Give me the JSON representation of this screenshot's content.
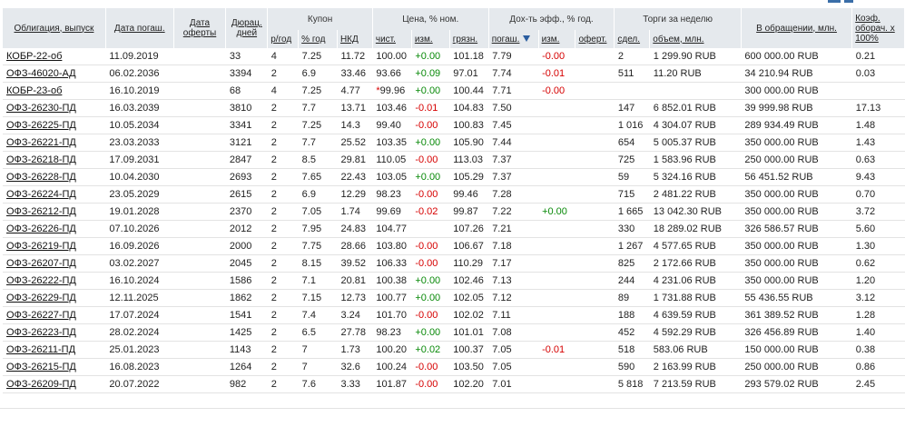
{
  "headers": {
    "bond": "Облигация, выпуск",
    "maturity": "Дата погаш.",
    "offer_date": "Дата оферты",
    "duration": "Дюрац. дней",
    "coupon": "Купон",
    "coupon_freq": "р/год",
    "coupon_rate": "% год",
    "nkd": "НКД",
    "price": "Цена, % ном.",
    "clean": "чист.",
    "change": "изм.",
    "dirty": "грязн.",
    "yield": "Дох-ть эфф., % год.",
    "to_maturity": "погаш.",
    "yield_change": "изм.",
    "to_offer": "оферт.",
    "trades": "Торги за неделю",
    "deals": "сдел.",
    "volume": "объем, млн.",
    "outstanding": "В обращении, млн.",
    "turnover": "Коэф. оборач. x 100%"
  },
  "rows": [
    {
      "name": "КОБР-22-об",
      "mat": "11.09.2019",
      "offer": "",
      "dur": "33",
      "freq": "4",
      "rate": "7.25",
      "nkd": "11.72",
      "star": "",
      "clean": "100.00",
      "chg": "+0.00",
      "dirty": "101.18",
      "ytm": "7.79",
      "ychg": "-0.00",
      "yoff": "",
      "deals": "2",
      "vol": "1 299.90 RUB",
      "out": "600 000.00 RUB",
      "coef": "0.21"
    },
    {
      "name": "ОФЗ-46020-АД",
      "mat": "06.02.2036",
      "offer": "",
      "dur": "3394",
      "freq": "2",
      "rate": "6.9",
      "nkd": "33.46",
      "star": "",
      "clean": "93.66",
      "chg": "+0.09",
      "dirty": "97.01",
      "ytm": "7.74",
      "ychg": "-0.01",
      "yoff": "",
      "deals": "511",
      "vol": "11.20 RUB",
      "out": "34 210.94 RUB",
      "coef": "0.03"
    },
    {
      "name": "КОБР-23-об",
      "mat": "16.10.2019",
      "offer": "",
      "dur": "68",
      "freq": "4",
      "rate": "7.25",
      "nkd": "4.77",
      "star": "*",
      "clean": "99.96",
      "chg": "+0.00",
      "dirty": "100.44",
      "ytm": "7.71",
      "ychg": "-0.00",
      "yoff": "",
      "deals": "",
      "vol": "",
      "out": "300 000.00 RUB",
      "coef": ""
    },
    {
      "name": "ОФЗ-26230-ПД",
      "mat": "16.03.2039",
      "offer": "",
      "dur": "3810",
      "freq": "2",
      "rate": "7.7",
      "nkd": "13.71",
      "star": "",
      "clean": "103.46",
      "chg": "-0.01",
      "dirty": "104.83",
      "ytm": "7.50",
      "ychg": "",
      "yoff": "",
      "deals": "147",
      "vol": "6 852.01 RUB",
      "out": "39 999.98 RUB",
      "coef": "17.13"
    },
    {
      "name": "ОФЗ-26225-ПД",
      "mat": "10.05.2034",
      "offer": "",
      "dur": "3341",
      "freq": "2",
      "rate": "7.25",
      "nkd": "14.3",
      "star": "",
      "clean": "99.40",
      "chg": "-0.00",
      "dirty": "100.83",
      "ytm": "7.45",
      "ychg": "",
      "yoff": "",
      "deals": "1 016",
      "vol": "4 304.07 RUB",
      "out": "289 934.49 RUB",
      "coef": "1.48"
    },
    {
      "name": "ОФЗ-26221-ПД",
      "mat": "23.03.2033",
      "offer": "",
      "dur": "3121",
      "freq": "2",
      "rate": "7.7",
      "nkd": "25.52",
      "star": "",
      "clean": "103.35",
      "chg": "+0.00",
      "dirty": "105.90",
      "ytm": "7.44",
      "ychg": "",
      "yoff": "",
      "deals": "654",
      "vol": "5 005.37 RUB",
      "out": "350 000.00 RUB",
      "coef": "1.43"
    },
    {
      "name": "ОФЗ-26218-ПД",
      "mat": "17.09.2031",
      "offer": "",
      "dur": "2847",
      "freq": "2",
      "rate": "8.5",
      "nkd": "29.81",
      "star": "",
      "clean": "110.05",
      "chg": "-0.00",
      "dirty": "113.03",
      "ytm": "7.37",
      "ychg": "",
      "yoff": "",
      "deals": "725",
      "vol": "1 583.96 RUB",
      "out": "250 000.00 RUB",
      "coef": "0.63"
    },
    {
      "name": "ОФЗ-26228-ПД",
      "mat": "10.04.2030",
      "offer": "",
      "dur": "2693",
      "freq": "2",
      "rate": "7.65",
      "nkd": "22.43",
      "star": "",
      "clean": "103.05",
      "chg": "+0.00",
      "dirty": "105.29",
      "ytm": "7.37",
      "ychg": "",
      "yoff": "",
      "deals": "59",
      "vol": "5 324.16 RUB",
      "out": "56 451.52 RUB",
      "coef": "9.43"
    },
    {
      "name": "ОФЗ-26224-ПД",
      "mat": "23.05.2029",
      "offer": "",
      "dur": "2615",
      "freq": "2",
      "rate": "6.9",
      "nkd": "12.29",
      "star": "",
      "clean": "98.23",
      "chg": "-0.00",
      "dirty": "99.46",
      "ytm": "7.28",
      "ychg": "",
      "yoff": "",
      "deals": "715",
      "vol": "2 481.22 RUB",
      "out": "350 000.00 RUB",
      "coef": "0.70"
    },
    {
      "name": "ОФЗ-26212-ПД",
      "mat": "19.01.2028",
      "offer": "",
      "dur": "2370",
      "freq": "2",
      "rate": "7.05",
      "nkd": "1.74",
      "star": "",
      "clean": "99.69",
      "chg": "-0.02",
      "dirty": "99.87",
      "ytm": "7.22",
      "ychg": "+0.00",
      "yoff": "",
      "deals": "1 665",
      "vol": "13 042.30 RUB",
      "out": "350 000.00 RUB",
      "coef": "3.72"
    },
    {
      "name": "ОФЗ-26226-ПД",
      "mat": "07.10.2026",
      "offer": "",
      "dur": "2012",
      "freq": "2",
      "rate": "7.95",
      "nkd": "24.83",
      "star": "",
      "clean": "104.77",
      "chg": "",
      "dirty": "107.26",
      "ytm": "7.21",
      "ychg": "",
      "yoff": "",
      "deals": "330",
      "vol": "18 289.02 RUB",
      "out": "326 586.57 RUB",
      "coef": "5.60"
    },
    {
      "name": "ОФЗ-26219-ПД",
      "mat": "16.09.2026",
      "offer": "",
      "dur": "2000",
      "freq": "2",
      "rate": "7.75",
      "nkd": "28.66",
      "star": "",
      "clean": "103.80",
      "chg": "-0.00",
      "dirty": "106.67",
      "ytm": "7.18",
      "ychg": "",
      "yoff": "",
      "deals": "1 267",
      "vol": "4 577.65 RUB",
      "out": "350 000.00 RUB",
      "coef": "1.30"
    },
    {
      "name": "ОФЗ-26207-ПД",
      "mat": "03.02.2027",
      "offer": "",
      "dur": "2045",
      "freq": "2",
      "rate": "8.15",
      "nkd": "39.52",
      "star": "",
      "clean": "106.33",
      "chg": "-0.00",
      "dirty": "110.29",
      "ytm": "7.17",
      "ychg": "",
      "yoff": "",
      "deals": "825",
      "vol": "2 172.66 RUB",
      "out": "350 000.00 RUB",
      "coef": "0.62"
    },
    {
      "name": "ОФЗ-26222-ПД",
      "mat": "16.10.2024",
      "offer": "",
      "dur": "1586",
      "freq": "2",
      "rate": "7.1",
      "nkd": "20.81",
      "star": "",
      "clean": "100.38",
      "chg": "+0.00",
      "dirty": "102.46",
      "ytm": "7.13",
      "ychg": "",
      "yoff": "",
      "deals": "244",
      "vol": "4 231.06 RUB",
      "out": "350 000.00 RUB",
      "coef": "1.20"
    },
    {
      "name": "ОФЗ-26229-ПД",
      "mat": "12.11.2025",
      "offer": "",
      "dur": "1862",
      "freq": "2",
      "rate": "7.15",
      "nkd": "12.73",
      "star": "",
      "clean": "100.77",
      "chg": "+0.00",
      "dirty": "102.05",
      "ytm": "7.12",
      "ychg": "",
      "yoff": "",
      "deals": "89",
      "vol": "1 731.88 RUB",
      "out": "55 436.55 RUB",
      "coef": "3.12"
    },
    {
      "name": "ОФЗ-26227-ПД",
      "mat": "17.07.2024",
      "offer": "",
      "dur": "1541",
      "freq": "2",
      "rate": "7.4",
      "nkd": "3.24",
      "star": "",
      "clean": "101.70",
      "chg": "-0.00",
      "dirty": "102.02",
      "ytm": "7.11",
      "ychg": "",
      "yoff": "",
      "deals": "188",
      "vol": "4 639.59 RUB",
      "out": "361 389.52 RUB",
      "coef": "1.28"
    },
    {
      "name": "ОФЗ-26223-ПД",
      "mat": "28.02.2024",
      "offer": "",
      "dur": "1425",
      "freq": "2",
      "rate": "6.5",
      "nkd": "27.78",
      "star": "",
      "clean": "98.23",
      "chg": "+0.00",
      "dirty": "101.01",
      "ytm": "7.08",
      "ychg": "",
      "yoff": "",
      "deals": "452",
      "vol": "4 592.29 RUB",
      "out": "326 456.89 RUB",
      "coef": "1.40"
    },
    {
      "name": "ОФЗ-26211-ПД",
      "mat": "25.01.2023",
      "offer": "",
      "dur": "1143",
      "freq": "2",
      "rate": "7",
      "nkd": "1.73",
      "star": "",
      "clean": "100.20",
      "chg": "+0.02",
      "dirty": "100.37",
      "ytm": "7.05",
      "ychg": "-0.01",
      "yoff": "",
      "deals": "518",
      "vol": "583.06 RUB",
      "out": "150 000.00 RUB",
      "coef": "0.38"
    },
    {
      "name": "ОФЗ-26215-ПД",
      "mat": "16.08.2023",
      "offer": "",
      "dur": "1264",
      "freq": "2",
      "rate": "7",
      "nkd": "32.6",
      "star": "",
      "clean": "100.24",
      "chg": "-0.00",
      "dirty": "103.50",
      "ytm": "7.05",
      "ychg": "",
      "yoff": "",
      "deals": "590",
      "vol": "2 163.99 RUB",
      "out": "250 000.00 RUB",
      "coef": "0.86"
    },
    {
      "name": "ОФЗ-26209-ПД",
      "mat": "20.07.2022",
      "offer": "",
      "dur": "982",
      "freq": "2",
      "rate": "7.6",
      "nkd": "3.33",
      "star": "",
      "clean": "101.87",
      "chg": "-0.00",
      "dirty": "102.20",
      "ytm": "7.01",
      "ychg": "",
      "yoff": "",
      "deals": "5 818",
      "vol": "7 213.59 RUB",
      "out": "293 579.02 RUB",
      "coef": "2.45"
    }
  ],
  "colors": {
    "header_bg": "#e5e9ed",
    "positive": "#0a8a0a",
    "negative": "#d60000",
    "sort_arrow": "#2a5d9f"
  }
}
